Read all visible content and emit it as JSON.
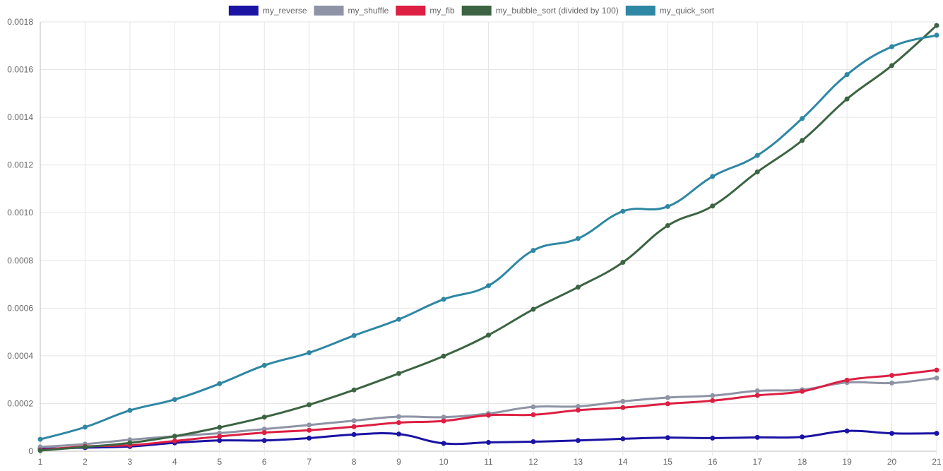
{
  "chart_data": {
    "type": "line",
    "title": "",
    "xlabel": "",
    "ylabel": "",
    "x": [
      "1",
      "2",
      "3",
      "4",
      "5",
      "6",
      "7",
      "8",
      "9",
      "10",
      "11",
      "12",
      "13",
      "14",
      "15",
      "16",
      "17",
      "18",
      "19",
      "20",
      "21"
    ],
    "ylim": [
      0,
      0.0018
    ],
    "yticks": [
      "0",
      "0.0002",
      "0.0004",
      "0.0006",
      "0.0008",
      "0.0010",
      "0.0012",
      "0.0014",
      "0.0016",
      "0.0018"
    ],
    "grid": true,
    "legend_position": "top-center",
    "series": [
      {
        "name": "my_reverse",
        "color": "#1a13a3",
        "values": [
          1e-05,
          1.5e-05,
          2e-05,
          3.5e-05,
          4.5e-05,
          4.5e-05,
          5.5e-05,
          7e-05,
          7.2e-05,
          3.3e-05,
          3.7e-05,
          4e-05,
          4.5e-05,
          5.2e-05,
          5.7e-05,
          5.5e-05,
          5.8e-05,
          6e-05,
          8.5e-05,
          7.5e-05,
          7.5e-05
        ]
      },
      {
        "name": "my_shuffle",
        "color": "#8e94a6",
        "values": [
          1.8e-05,
          3e-05,
          4.8e-05,
          6.3e-05,
          7.6e-05,
          9.3e-05,
          0.00011,
          0.000128,
          0.000145,
          0.000143,
          0.000158,
          0.000186,
          0.000188,
          0.000209,
          0.000225,
          0.000233,
          0.000253,
          0.000258,
          0.000288,
          0.000286,
          0.000307
        ]
      },
      {
        "name": "my_fib",
        "color": "#dc1f42",
        "values": [
          5e-06,
          2e-05,
          2.5e-05,
          4.3e-05,
          6.2e-05,
          7.8e-05,
          8.8e-05,
          0.000103,
          0.00012,
          0.000127,
          0.000151,
          0.000153,
          0.000172,
          0.000183,
          0.000199,
          0.000212,
          0.000234,
          0.000251,
          0.000298,
          0.000318,
          0.00034
        ]
      },
      {
        "name": "my_bubble_sort (divided by 100)",
        "color": "#3c6442",
        "values": [
          3e-06,
          1.8e-05,
          3.5e-05,
          6.3e-05,
          0.0001,
          0.000143,
          0.000195,
          0.000257,
          0.000326,
          0.000399,
          0.000487,
          0.000595,
          0.000688,
          0.000792,
          0.000946,
          0.001028,
          0.001171,
          0.001303,
          0.001477,
          0.001617,
          0.001785
        ]
      },
      {
        "name": "my_quick_sort",
        "color": "#2e87a3",
        "values": [
          5e-05,
          0.000101,
          0.000171,
          0.000217,
          0.000283,
          0.00036,
          0.000413,
          0.000485,
          0.000553,
          0.000637,
          0.000694,
          0.000842,
          0.000892,
          0.001006,
          0.001026,
          0.001152,
          0.00124,
          0.001395,
          0.001579,
          0.001696,
          0.001744
        ]
      }
    ]
  }
}
